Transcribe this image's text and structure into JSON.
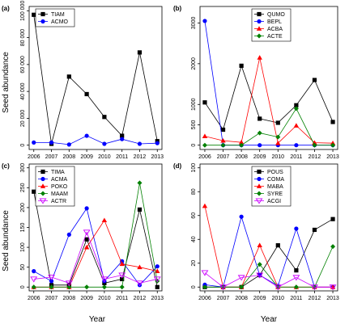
{
  "figure": {
    "xlabel": "Year",
    "ylabel": "Seed abundance"
  },
  "chart_data": [
    {
      "panel": "(a)",
      "type": "line",
      "x": [
        2006,
        2007,
        2008,
        2009,
        2010,
        2011,
        2012,
        2013
      ],
      "ylim": [
        0,
        100000
      ],
      "yticks": [
        0,
        20000,
        40000,
        60000,
        80000,
        100000
      ],
      "ytick_labels": [
        "0",
        "20 000",
        "40 000",
        "60 000",
        "80 000",
        "100 000"
      ],
      "legend_position": "top-left",
      "series": [
        {
          "name": "TIAM",
          "color": "#000000",
          "marker": "square",
          "values": [
            97000,
            1000,
            51000,
            38000,
            21000,
            7000,
            69000,
            3000
          ]
        },
        {
          "name": "ACMO",
          "color": "#0000ff",
          "marker": "circle",
          "values": [
            2000,
            2000,
            500,
            7000,
            1000,
            4500,
            1000,
            1500
          ]
        }
      ]
    },
    {
      "panel": "(b)",
      "type": "line",
      "x": [
        2006,
        2007,
        2008,
        2009,
        2010,
        2011,
        2012,
        2013
      ],
      "ylim": [
        0,
        3300
      ],
      "yticks": [
        0,
        500,
        1000,
        2000,
        3000
      ],
      "ytick_labels": [
        "0",
        "500",
        "1000",
        "2000",
        "3000"
      ],
      "legend_position": "top-right",
      "series": [
        {
          "name": "QUMO",
          "color": "#000000",
          "marker": "square",
          "values": [
            1050,
            380,
            1950,
            650,
            550,
            980,
            1600,
            570
          ]
        },
        {
          "name": "BEPL",
          "color": "#0000ff",
          "marker": "circle",
          "values": [
            3050,
            0,
            0,
            0,
            0,
            0,
            0,
            0
          ]
        },
        {
          "name": "ACBA",
          "color": "#ff0000",
          "marker": "triangle",
          "values": [
            220,
            110,
            70,
            2150,
            50,
            480,
            60,
            50
          ]
        },
        {
          "name": "ACTE",
          "color": "#008000",
          "marker": "diamond",
          "values": [
            0,
            0,
            0,
            300,
            200,
            900,
            0,
            0
          ]
        }
      ]
    },
    {
      "panel": "(c)",
      "type": "line",
      "x": [
        2006,
        2007,
        2008,
        2009,
        2010,
        2011,
        2012,
        2013
      ],
      "ylim": [
        0,
        300
      ],
      "yticks": [
        0,
        50,
        100,
        150,
        200,
        250,
        300
      ],
      "ytick_labels": [
        "0",
        "50",
        "100",
        "150",
        "200",
        "250",
        "300"
      ],
      "legend_position": "top-left",
      "series": [
        {
          "name": "TIMA",
          "color": "#000000",
          "marker": "square",
          "values": [
            240,
            5,
            5,
            120,
            10,
            20,
            195,
            0
          ]
        },
        {
          "name": "ACMA",
          "color": "#0000ff",
          "marker": "circle",
          "values": [
            40,
            15,
            132,
            198,
            15,
            65,
            5,
            52
          ]
        },
        {
          "name": "POKO",
          "color": "#ff0000",
          "marker": "triangle",
          "values": [
            0,
            0,
            0,
            100,
            168,
            58,
            50,
            40
          ]
        },
        {
          "name": "MAAM",
          "color": "#008000",
          "marker": "diamond",
          "values": [
            0,
            0,
            0,
            0,
            0,
            0,
            262,
            15
          ]
        },
        {
          "name": "ACTR",
          "color": "#cc00ff",
          "marker": "triangle-down",
          "values": [
            20,
            25,
            10,
            138,
            20,
            30,
            10,
            20
          ]
        }
      ]
    },
    {
      "panel": "(d)",
      "type": "line",
      "x": [
        2006,
        2007,
        2008,
        2009,
        2010,
        2011,
        2012,
        2013
      ],
      "ylim": [
        0,
        100
      ],
      "yticks": [
        0,
        20,
        40,
        60,
        80,
        100
      ],
      "ytick_labels": [
        "0",
        "20",
        "40",
        "60",
        "80",
        "100"
      ],
      "legend_position": "top-right",
      "series": [
        {
          "name": "POUS",
          "color": "#000000",
          "marker": "square",
          "values": [
            0,
            0,
            0,
            10,
            35,
            14,
            48,
            57
          ]
        },
        {
          "name": "COMA",
          "color": "#0000ff",
          "marker": "circle",
          "values": [
            2,
            0,
            59,
            10,
            1,
            49,
            0,
            0
          ]
        },
        {
          "name": "MABA",
          "color": "#ff0000",
          "marker": "triangle",
          "values": [
            68,
            0,
            0,
            35,
            0,
            0,
            0,
            0
          ]
        },
        {
          "name": "SYRE",
          "color": "#008000",
          "marker": "diamond",
          "values": [
            0,
            0,
            0,
            19,
            0,
            0,
            0,
            34
          ]
        },
        {
          "name": "ACGI",
          "color": "#cc00ff",
          "marker": "triangle-down",
          "values": [
            12,
            0,
            8,
            10,
            0,
            8,
            0,
            0
          ]
        }
      ]
    }
  ]
}
